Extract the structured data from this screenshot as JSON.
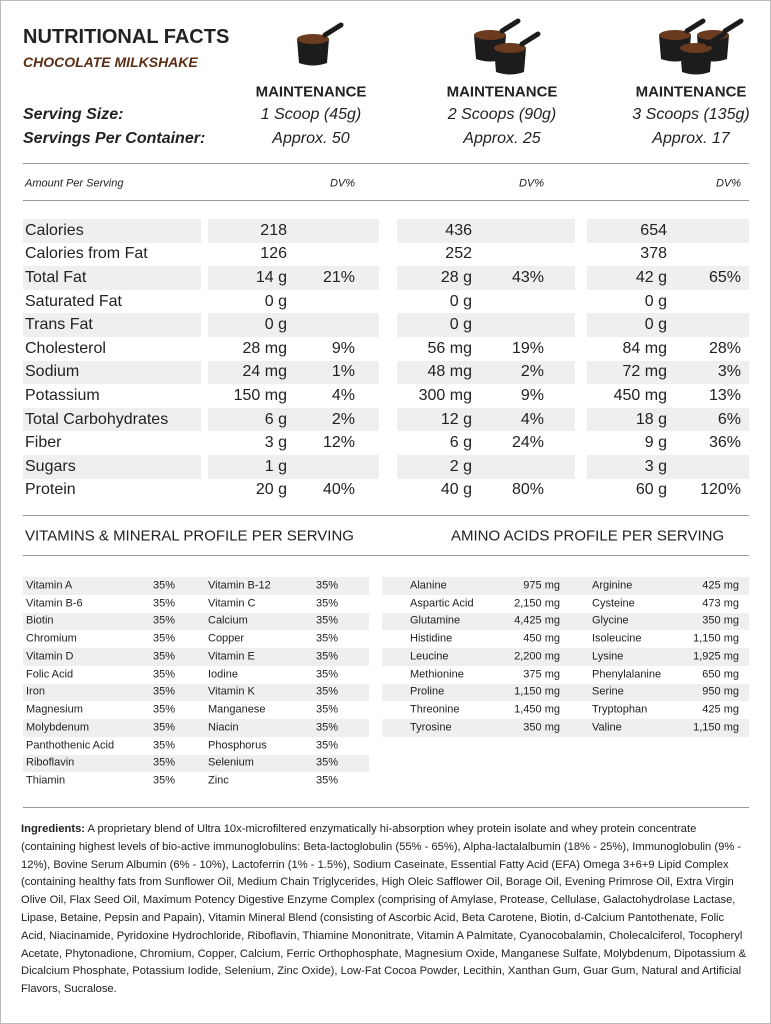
{
  "header": {
    "title": "NUTRITIONAL FACTS",
    "subtitle": "CHOCOLATE MILKSHAKE"
  },
  "serving": {
    "size_label": "Serving Size:",
    "container_label": "Servings Per Container:",
    "columns": [
      {
        "plan": "MAINTENANCE",
        "size": "1 Scoop (45g)",
        "servings": "Approx. 50"
      },
      {
        "plan": "MAINTENANCE",
        "size": "2 Scoops (90g)",
        "servings": "Approx. 25"
      },
      {
        "plan": "MAINTENANCE",
        "size": "3 Scoops (135g)",
        "servings": "Approx. 17"
      }
    ]
  },
  "amount_header": {
    "label": "Amount Per Serving",
    "dv": [
      "DV%",
      "DV%",
      "DV%"
    ]
  },
  "nutrients": [
    {
      "name": "Calories",
      "values": [
        {
          "amount": "218"
        },
        {
          "amount": "436"
        },
        {
          "amount": "654"
        }
      ]
    },
    {
      "name": "Calories from Fat",
      "values": [
        {
          "amount": "126"
        },
        {
          "amount": "252"
        },
        {
          "amount": "378"
        }
      ]
    },
    {
      "name": "Total Fat",
      "values": [
        {
          "amount": "14 g",
          "dv": "21%"
        },
        {
          "amount": "28 g",
          "dv": "43%"
        },
        {
          "amount": "42 g",
          "dv": "65%"
        }
      ]
    },
    {
      "name": "Saturated Fat",
      "values": [
        {
          "amount": "0 g"
        },
        {
          "amount": "0 g"
        },
        {
          "amount": "0 g"
        }
      ]
    },
    {
      "name": "Trans Fat",
      "values": [
        {
          "amount": "0 g"
        },
        {
          "amount": "0 g"
        },
        {
          "amount": "0 g"
        }
      ]
    },
    {
      "name": "Cholesterol",
      "values": [
        {
          "amount": "28 mg",
          "dv": "9%"
        },
        {
          "amount": "56 mg",
          "dv": "19%"
        },
        {
          "amount": "84 mg",
          "dv": "28%"
        }
      ]
    },
    {
      "name": "Sodium",
      "values": [
        {
          "amount": "24 mg",
          "dv": "1%"
        },
        {
          "amount": "48 mg",
          "dv": "2%"
        },
        {
          "amount": "72 mg",
          "dv": "3%"
        }
      ]
    },
    {
      "name": "Potassium",
      "values": [
        {
          "amount": "150 mg",
          "dv": "4%"
        },
        {
          "amount": "300 mg",
          "dv": "9%"
        },
        {
          "amount": "450 mg",
          "dv": "13%"
        }
      ]
    },
    {
      "name": "Total Carbohydrates",
      "values": [
        {
          "amount": "6 g",
          "dv": "2%"
        },
        {
          "amount": "12 g",
          "dv": "4%"
        },
        {
          "amount": "18 g",
          "dv": "6%"
        }
      ]
    },
    {
      "name": "Fiber",
      "values": [
        {
          "amount": "3 g",
          "dv": "12%"
        },
        {
          "amount": "6 g",
          "dv": "24%"
        },
        {
          "amount": "9 g",
          "dv": "36%"
        }
      ]
    },
    {
      "name": "Sugars",
      "values": [
        {
          "amount": "1 g"
        },
        {
          "amount": "2 g"
        },
        {
          "amount": "3 g"
        }
      ]
    },
    {
      "name": "Protein",
      "values": [
        {
          "amount": "20 g",
          "dv": "40%"
        },
        {
          "amount": "40 g",
          "dv": "80%"
        },
        {
          "amount": "60 g",
          "dv": "120%"
        }
      ]
    }
  ],
  "vitamins": {
    "title": "VITAMINS & MINERAL PROFILE PER SERVING",
    "rows": [
      [
        "Vitamin A",
        "35%",
        "Vitamin B-12",
        "35%"
      ],
      [
        "Vitamin B-6",
        "35%",
        "Vitamin C",
        "35%"
      ],
      [
        "Biotin",
        "35%",
        "Calcium",
        "35%"
      ],
      [
        "Chromium",
        "35%",
        "Copper",
        "35%"
      ],
      [
        "Vitamin D",
        "35%",
        "Vitamin E",
        "35%"
      ],
      [
        "Folic Acid",
        "35%",
        "Iodine",
        "35%"
      ],
      [
        "Iron",
        "35%",
        "Vitamin K",
        "35%"
      ],
      [
        "Magnesium",
        "35%",
        "Manganese",
        "35%"
      ],
      [
        "Molybdenum",
        "35%",
        "Niacin",
        "35%"
      ],
      [
        "Panthothenic Acid",
        "35%",
        "Phosphorus",
        "35%"
      ],
      [
        "Riboflavin",
        "35%",
        "Selenium",
        "35%"
      ],
      [
        "Thiamin",
        "35%",
        "Zinc",
        "35%"
      ]
    ]
  },
  "amino_acids": {
    "title": "AMINO ACIDS PROFILE PER SERVING",
    "rows": [
      [
        "Alanine",
        "975 mg",
        "Arginine",
        "425 mg"
      ],
      [
        "Aspartic Acid",
        "2,150 mg",
        "Cysteine",
        "473 mg"
      ],
      [
        "Glutamine",
        "4,425 mg",
        "Glycine",
        "350 mg"
      ],
      [
        "Histidine",
        "450 mg",
        "Isoleucine",
        "1,150 mg"
      ],
      [
        "Leucine",
        "2,200 mg",
        "Lysine",
        "1,925 mg"
      ],
      [
        "Methionine",
        "375 mg",
        "Phenylalanine",
        "650 mg"
      ],
      [
        "Proline",
        "1,150 mg",
        "Serine",
        "950 mg"
      ],
      [
        "Threonine",
        "1,450 mg",
        "Tryptophan",
        "425 mg"
      ],
      [
        "Tyrosine",
        "350 mg",
        "Valine",
        "1,150 mg"
      ]
    ]
  },
  "ingredients": {
    "label": "Ingredients:",
    "text": "A proprietary blend of Ultra 10x-microfiltered enzymatically hi-absorption whey protein isolate and whey protein concentrate (containing highest levels of bio-active immunoglobulins:  Beta-lactoglobulin (55% - 65%), Alpha-lactalalbumin (18% - 25%), Immunoglobulin (9% - 12%), Bovine Serum Albumin (6% - 10%), Lactoferrin (1% - 1.5%), Sodium Caseinate, Essential Fatty Acid (EFA) Omega 3+6+9 Lipid Complex (containing healthy fats from Sunflower Oil, Medium Chain Triglycerides, High Oleic Safflower Oil, Borage Oil, Evening Primrose Oil, Extra Virgin Olive Oil, Flax Seed Oil, Maximum Potency Digestive Enzyme Complex (comprising of Amylase, Protease, Cellulase, Galactohydrolase Lactase, Lipase, Betaine, Pepsin and Papain), Vitamin Mineral Blend (consisting of Ascorbic Acid, Beta Carotene, Biotin, d-Calcium Pantothenate, Folic Acid, Niacinamide, Pyridoxine Hydrochloride, Riboflavin, Thiamine Mononitrate, Vitamin A Palmitate, Cyanocobalamin, Cholecalciferol, Tocopheryl Acetate, Phytonadione, Chromium, Copper, Calcium, Ferric Orthophosphate, Magnesium Oxide, Manganese Sulfate, Molybdenum, Dipotassium & Dicalcium Phosphate, Potassium Iodide, Selenium, Zinc Oxide), Low-Fat Cocoa Powder, Lecithin, Xanthan Gum, Guar Gum, Natural and Artificial Flavors, Sucralose."
  }
}
